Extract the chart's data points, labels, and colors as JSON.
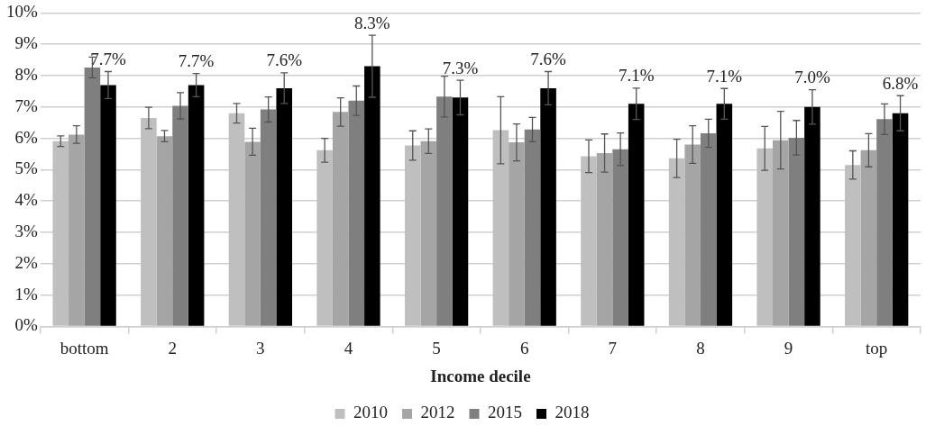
{
  "chart_data": {
    "type": "bar",
    "xlabel": "Income decile",
    "categories": [
      "bottom",
      "2",
      "3",
      "4",
      "5",
      "6",
      "7",
      "8",
      "9",
      "top"
    ],
    "series": [
      {
        "name": "2010",
        "color": "#bfbfbf",
        "values": [
          5.91,
          6.65,
          6.8,
          5.62,
          5.77,
          6.26,
          5.43,
          5.36,
          5.68,
          5.15
        ],
        "errors": [
          0.17,
          0.34,
          0.31,
          0.38,
          0.47,
          1.07,
          0.52,
          0.61,
          0.7,
          0.45
        ]
      },
      {
        "name": "2012",
        "color": "#a5a5a5",
        "values": [
          6.12,
          6.07,
          5.89,
          6.84,
          5.91,
          5.87,
          5.53,
          5.8,
          5.94,
          5.62
        ],
        "errors": [
          0.28,
          0.18,
          0.43,
          0.45,
          0.39,
          0.59,
          0.61,
          0.6,
          0.92,
          0.53
        ]
      },
      {
        "name": "2015",
        "color": "#7f7f7f",
        "values": [
          8.26,
          7.04,
          6.92,
          7.2,
          7.33,
          6.28,
          5.65,
          6.16,
          6.02,
          6.61
        ],
        "errors": [
          0.33,
          0.42,
          0.4,
          0.47,
          0.65,
          0.39,
          0.52,
          0.45,
          0.55,
          0.49
        ]
      },
      {
        "name": "2018",
        "color": "#000000",
        "values": [
          7.7,
          7.7,
          7.6,
          8.3,
          7.3,
          7.6,
          7.1,
          7.1,
          7.0,
          6.8
        ],
        "errors": [
          0.43,
          0.37,
          0.49,
          0.99,
          0.55,
          0.53,
          0.5,
          0.49,
          0.55,
          0.56
        ],
        "value_labels": [
          "7.7%",
          "7.7%",
          "7.6%",
          "8.3%",
          "7.3%",
          "7.6%",
          "7.1%",
          "7.1%",
          "7.0%",
          "6.8%"
        ]
      }
    ],
    "ylim": [
      0,
      10
    ],
    "yticks": [
      {
        "value": 0,
        "label": "0%"
      },
      {
        "value": 1,
        "label": "1%"
      },
      {
        "value": 2,
        "label": "2%"
      },
      {
        "value": 3,
        "label": "3%"
      },
      {
        "value": 4,
        "label": "4%"
      },
      {
        "value": 5,
        "label": "5%"
      },
      {
        "value": 6,
        "label": "6%"
      },
      {
        "value": 7,
        "label": "7%"
      },
      {
        "value": 8,
        "label": "8%"
      },
      {
        "value": 9,
        "label": "9%"
      },
      {
        "value": 10,
        "label": "10%"
      }
    ],
    "grid": "y",
    "legend": "bottom"
  }
}
